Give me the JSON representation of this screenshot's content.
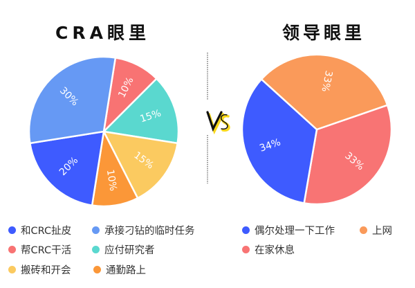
{
  "titles": {
    "left": "CRA眼里",
    "right": "领导眼里"
  },
  "vs_label": "VS",
  "chart_data": [
    {
      "type": "pie",
      "title": "CRA眼里",
      "categories": [
        "帮CRC干活",
        "应付研究者",
        "搬砖和开会",
        "通勤路上",
        "和CRC扯皮",
        "承接刁钻的临时任务"
      ],
      "values": [
        10,
        15,
        15,
        10,
        20,
        30
      ],
      "labels": [
        "10%",
        "15%",
        "15%",
        "10%",
        "20%",
        "30%"
      ],
      "colors": [
        "#F87373",
        "#5AD8CF",
        "#FBCA60",
        "#FB9738",
        "#3E5BFF",
        "#6699F4"
      ],
      "legend": [
        {
          "label": "和CRC扯皮",
          "color": "#3E5BFF"
        },
        {
          "label": "承接刁钻的临时任务",
          "color": "#6699F4"
        },
        {
          "label": "帮CRC干活",
          "color": "#F87373"
        },
        {
          "label": "应付研究者",
          "color": "#5AD8CF"
        },
        {
          "label": "搬砖和开会",
          "color": "#FBCA60"
        },
        {
          "label": "通勤路上",
          "color": "#FB9738"
        }
      ],
      "legend_position": "bottom"
    },
    {
      "type": "pie",
      "title": "领导眼里",
      "categories": [
        "在家休息",
        "偶尔处理一下工作",
        "上网"
      ],
      "values": [
        33,
        34,
        33
      ],
      "labels": [
        "33%",
        "34%",
        "33%"
      ],
      "colors": [
        "#F87474",
        "#3E5BFF",
        "#FA9A5A"
      ],
      "legend": [
        {
          "label": "偶尔处理一下工作",
          "color": "#3E5BFF"
        },
        {
          "label": "上网",
          "color": "#FA9A5A"
        },
        {
          "label": "在家休息",
          "color": "#F87474"
        }
      ],
      "legend_position": "bottom"
    }
  ]
}
